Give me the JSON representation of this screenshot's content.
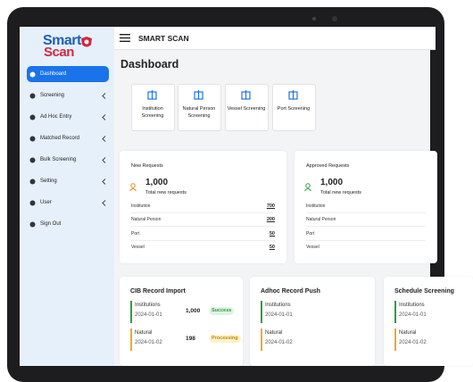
{
  "sidebar": {
    "logo_top": "Smart",
    "logo_bottom": "Scan",
    "menu": [
      "Dashboard",
      "Screening",
      "Ad Hoc Entry",
      "Matched Record",
      "Bulk Screening",
      "Setting",
      "User",
      "Sign Out"
    ]
  },
  "header": {
    "title": "SMART SCAN"
  },
  "page_title": "Dashboard",
  "quick_links": [
    "Institution Screening",
    "Natural Person Screening",
    "Vessel Screening",
    "Port Screening"
  ],
  "summary_cards": [
    {
      "title": "New Requests",
      "total": "1,000",
      "caption": "Total new requests",
      "rows": [
        {
          "label": "Institution",
          "value": "700"
        },
        {
          "label": "Natural Person",
          "value": "200"
        },
        {
          "label": "Port",
          "value": "50"
        },
        {
          "label": "Vessel",
          "value": "50"
        }
      ]
    },
    {
      "title": "Approved Requests",
      "total": "1,000",
      "caption": "Total new requests",
      "rows": [
        {
          "label": "Institution"
        },
        {
          "label": "Natural Person"
        },
        {
          "label": "Port"
        },
        {
          "label": "Vessel"
        }
      ]
    }
  ],
  "activity_cards": [
    {
      "title": "CIB Record Import",
      "items": [
        {
          "name": "Institutions",
          "date": "2024-01-01",
          "count": "1,000",
          "status": "Success"
        },
        {
          "name": "Natural",
          "date": "2024-01-02",
          "count": "198",
          "status": "Processing"
        }
      ]
    },
    {
      "title": "Adhoc Record Push",
      "items": [
        {
          "name": "Institutions",
          "date": "2024-01-01"
        },
        {
          "name": "Natural",
          "date": "2024-01-02"
        }
      ]
    },
    {
      "title": "Schedule Screening",
      "items": [
        {
          "name": "Institutions",
          "date": "2024-01-01"
        },
        {
          "name": "Natural",
          "date": "2024-01-02"
        }
      ]
    }
  ]
}
